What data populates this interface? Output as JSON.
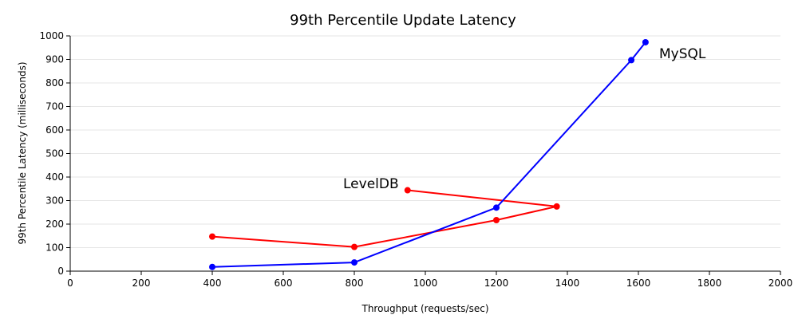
{
  "chart_data": {
    "type": "line",
    "title": "99th Percentile Update Latency",
    "xlabel": "Throughput (requests/sec)",
    "ylabel": "99th Percentile Latency (milliseconds)",
    "xlim": [
      0,
      2000
    ],
    "ylim": [
      0,
      1000
    ],
    "xticks": [
      0,
      200,
      400,
      600,
      800,
      1000,
      1200,
      1400,
      1600,
      1800,
      2000
    ],
    "yticks": [
      0,
      100,
      200,
      300,
      400,
      500,
      600,
      700,
      800,
      900,
      1000
    ],
    "grid": true,
    "series": [
      {
        "name": "LevelDB",
        "color": "#ff0000",
        "points": [
          {
            "x": 400,
            "y": 147
          },
          {
            "x": 800,
            "y": 103
          },
          {
            "x": 1200,
            "y": 217
          },
          {
            "x": 1370,
            "y": 275
          },
          {
            "x": 950,
            "y": 344
          }
        ]
      },
      {
        "name": "MySQL",
        "color": "#0000ff",
        "points": [
          {
            "x": 400,
            "y": 18
          },
          {
            "x": 800,
            "y": 37
          },
          {
            "x": 1200,
            "y": 270
          },
          {
            "x": 1580,
            "y": 897
          },
          {
            "x": 1620,
            "y": 973
          }
        ]
      }
    ]
  }
}
